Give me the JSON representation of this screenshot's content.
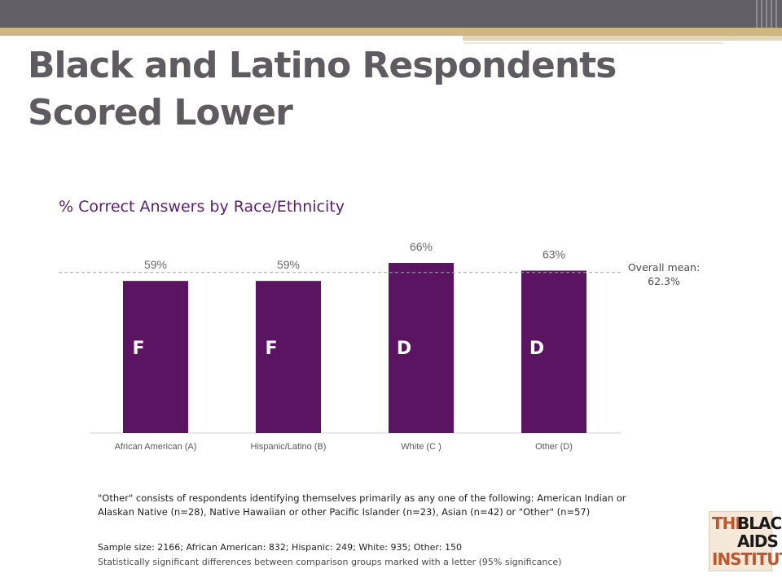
{
  "slide": {
    "title_line1": "Black and Latino Respondents",
    "title_line2": "Scored Lower",
    "subtitle": "% Correct Answers by Race/Ethnicity",
    "mean_label_line1": "Overall mean:",
    "mean_label_line2": "62.3%",
    "note": "\"Other\" consists of respondents identifying themselves primarily as any one of the following: American Indian or Alaskan Native (n=28), Native Hawaiian or other Pacific Islander (n=23), Asian (n=42) or \"Other\" (n=57)",
    "sample": "Sample size: 2166; African American: 832; Hispanic: 249; White: 935; Other: 150",
    "significance": "Statistically significant differences between comparison groups marked with a letter (95% significance)",
    "logo": {
      "text": "THE BLACK AIDS INSTITUTE",
      "line1a": "THE",
      "line1b": "BLACK",
      "line2": "AIDS",
      "line3": "INSTITUTE"
    }
  },
  "colors": {
    "bar": "#5a1462",
    "mean_line": "#a6a6a6",
    "title": "#5e5c61",
    "subtitle": "#5a2071"
  },
  "chart_data": {
    "type": "bar",
    "title": "% Correct Answers by Race/Ethnicity",
    "categories": [
      "African American (A)",
      "Hispanic/Latino (B)",
      "White (C )",
      "Other (D)"
    ],
    "values": [
      59,
      59,
      66,
      63
    ],
    "value_labels": [
      "59%",
      "59%",
      "66%",
      "63%"
    ],
    "significance_letters": [
      "F",
      "F",
      "D",
      "D"
    ],
    "reference_line": {
      "value": 62.3,
      "label": "Overall mean: 62.3%"
    },
    "ylim": [
      0,
      70
    ],
    "grid": false,
    "legend": "none"
  }
}
